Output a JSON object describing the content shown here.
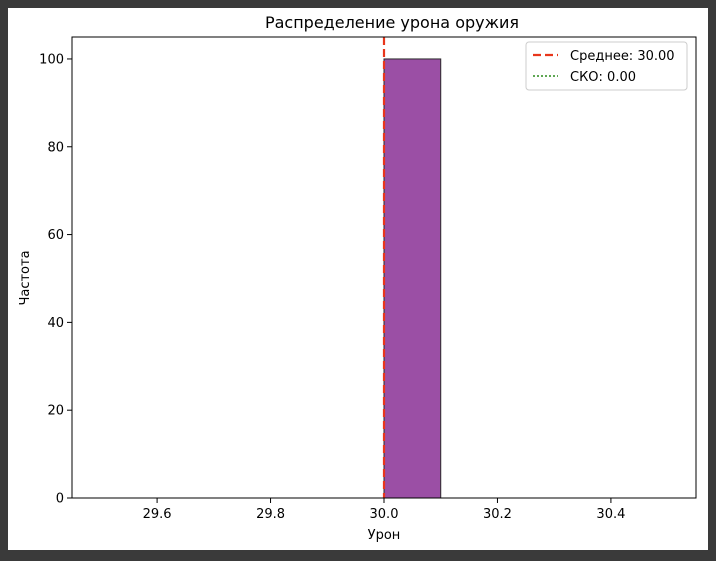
{
  "chart_data": {
    "type": "bar",
    "title": "Распределение урона оружия",
    "xlabel": "Урон",
    "ylabel": "Частота",
    "xlim": [
      29.45,
      30.55
    ],
    "ylim": [
      0,
      105
    ],
    "x_ticks": [
      "29.6",
      "29.8",
      "30.0",
      "30.2",
      "30.4"
    ],
    "y_ticks": [
      "0",
      "20",
      "40",
      "60",
      "80",
      "100"
    ],
    "bins": [
      {
        "x0": 29.5,
        "x1": 29.6,
        "count": 0
      },
      {
        "x0": 29.6,
        "x1": 29.7,
        "count": 0
      },
      {
        "x0": 29.7,
        "x1": 29.8,
        "count": 0
      },
      {
        "x0": 29.8,
        "x1": 29.9,
        "count": 0
      },
      {
        "x0": 29.9,
        "x1": 30.0,
        "count": 0
      },
      {
        "x0": 30.0,
        "x1": 30.1,
        "count": 100
      },
      {
        "x0": 30.1,
        "x1": 30.2,
        "count": 0
      },
      {
        "x0": 30.2,
        "x1": 30.3,
        "count": 0
      },
      {
        "x0": 30.3,
        "x1": 30.4,
        "count": 0
      },
      {
        "x0": 30.4,
        "x1": 30.5,
        "count": 0
      }
    ],
    "bar_color": "#9b4fa5",
    "mean": {
      "value": 30.0,
      "label": "Среднее: 30.00",
      "color": "#e8361b",
      "style": "dashed"
    },
    "std": {
      "value": 0.0,
      "label": "СКО: 0.00",
      "color": "#2a8a1a",
      "style": "dotted"
    },
    "legend_position": "top-right",
    "grid": false
  }
}
